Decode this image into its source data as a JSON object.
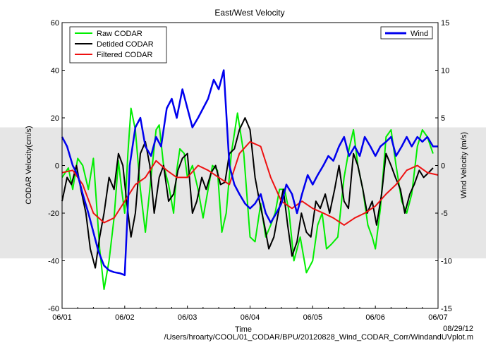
{
  "chart_data": {
    "type": "line",
    "title": "East/West Velocity",
    "xlabel": "Time",
    "ylabel_left": "CODAR Velocity(cm/s)",
    "ylabel_right": "Wind Velocity (m/s)",
    "ylim_left": [
      -60,
      60
    ],
    "ylim_right": [
      -15,
      15
    ],
    "left_ticks": [
      "-60",
      "-40",
      "-20",
      "0",
      "20",
      "40",
      "60"
    ],
    "right_ticks": [
      "-15",
      "-10",
      "-5",
      "0",
      "5",
      "10",
      "15"
    ],
    "x_ticks": [
      "06/01",
      "06/02",
      "06/03",
      "06/04",
      "06/05",
      "06/06",
      "06/07"
    ],
    "x_range": [
      0,
      6
    ],
    "shaded_band": [
      -39,
      16
    ],
    "date_label": "08/29/12",
    "file_path": "/Users/hroarty/COOL/01_CODAR/BPU/20120828_Wind_CODAR_Corr/WindandUVplot.m",
    "legend_left": [
      "Raw CODAR",
      "Detided CODAR",
      "Filtered CODAR"
    ],
    "legend_right": [
      "Wind"
    ],
    "colors": {
      "raw": "#00ee00",
      "detided": "#000000",
      "filtered": "#ee1111",
      "wind": "#0000ee",
      "band": "#e6e6e6"
    },
    "series": [
      {
        "name": "Raw CODAR",
        "axis": "left",
        "x": [
          0.0,
          0.1,
          0.17,
          0.25,
          0.33,
          0.42,
          0.5,
          0.6,
          0.67,
          0.75,
          0.83,
          0.9,
          0.95,
          1.0,
          1.05,
          1.1,
          1.17,
          1.25,
          1.33,
          1.42,
          1.5,
          1.55,
          1.62,
          1.7,
          1.78,
          1.83,
          1.88,
          1.95,
          2.0,
          2.08,
          2.17,
          2.25,
          2.33,
          2.4,
          2.48,
          2.55,
          2.62,
          2.7,
          2.8,
          2.9,
          3.0,
          3.08,
          3.17,
          3.25,
          3.33,
          3.4,
          3.47,
          3.55,
          3.62,
          3.7,
          3.8,
          3.9,
          4.0,
          4.08,
          4.15,
          4.22,
          4.3,
          4.4,
          4.5,
          4.58,
          4.65,
          4.72,
          4.8,
          4.88,
          4.95,
          5.0,
          5.08,
          5.17,
          5.25,
          5.33,
          5.42,
          5.5,
          5.58,
          5.67,
          5.75,
          5.83,
          5.92
        ],
        "y": [
          -5,
          -1,
          -10,
          3,
          0,
          -10,
          3,
          -35,
          -52,
          -40,
          -22,
          2,
          -10,
          -20,
          5,
          24,
          15,
          -10,
          -28,
          -5,
          15,
          17,
          0,
          -8,
          -20,
          -2,
          7,
          5,
          -5,
          0,
          -10,
          -22,
          -10,
          0,
          -2,
          -28,
          -20,
          5,
          22,
          5,
          -30,
          -32,
          -16,
          -30,
          -25,
          -20,
          -10,
          -10,
          -19,
          -40,
          -30,
          -45,
          -40,
          -25,
          -20,
          -35,
          -33,
          -30,
          -5,
          7,
          15,
          0,
          -10,
          -25,
          -30,
          -35,
          -18,
          12,
          15,
          0,
          -15,
          -20,
          -12,
          8,
          15,
          12,
          5
        ]
      },
      {
        "name": "Detided CODAR",
        "axis": "left",
        "x": [
          0.0,
          0.08,
          0.15,
          0.23,
          0.3,
          0.38,
          0.45,
          0.53,
          0.6,
          0.67,
          0.75,
          0.83,
          0.9,
          0.97,
          1.03,
          1.1,
          1.17,
          1.25,
          1.33,
          1.4,
          1.47,
          1.55,
          1.62,
          1.7,
          1.78,
          1.85,
          1.92,
          2.0,
          2.08,
          2.15,
          2.23,
          2.3,
          2.38,
          2.45,
          2.53,
          2.6,
          2.67,
          2.75,
          2.83,
          2.92,
          3.0,
          3.08,
          3.15,
          3.23,
          3.3,
          3.38,
          3.45,
          3.53,
          3.6,
          3.67,
          3.75,
          3.82,
          3.9,
          3.97,
          4.05,
          4.12,
          4.2,
          4.27,
          4.35,
          4.42,
          4.5,
          4.57,
          4.65,
          4.72,
          4.8,
          4.87,
          4.95,
          5.02,
          5.1,
          5.17,
          5.25,
          5.32,
          5.4,
          5.47,
          5.55,
          5.62,
          5.7,
          5.77,
          5.85,
          5.92
        ],
        "y": [
          -15,
          -5,
          -8,
          0,
          -10,
          -20,
          -35,
          -43,
          -30,
          -20,
          -5,
          -10,
          5,
          0,
          -15,
          -30,
          -20,
          5,
          10,
          0,
          -20,
          -5,
          0,
          -15,
          -12,
          -2,
          3,
          5,
          -20,
          -15,
          -5,
          -10,
          -3,
          0,
          -8,
          -7,
          5,
          7,
          15,
          20,
          15,
          -5,
          -15,
          -25,
          -35,
          -30,
          -20,
          -10,
          -25,
          -38,
          -32,
          -20,
          -28,
          -30,
          -15,
          -18,
          -12,
          -20,
          -10,
          0,
          -15,
          -18,
          5,
          0,
          -10,
          -20,
          -15,
          -25,
          -12,
          5,
          0,
          -5,
          -10,
          -20,
          -12,
          -8,
          -2,
          -5,
          -3,
          -1
        ]
      },
      {
        "name": "Filtered CODAR",
        "axis": "left",
        "x": [
          0.0,
          0.17,
          0.33,
          0.5,
          0.67,
          0.83,
          1.0,
          1.17,
          1.33,
          1.5,
          1.67,
          1.83,
          2.0,
          2.17,
          2.33,
          2.5,
          2.67,
          2.83,
          3.0,
          3.17,
          3.33,
          3.5,
          3.67,
          3.83,
          4.0,
          4.17,
          4.33,
          4.5,
          4.67,
          4.83,
          5.0,
          5.17,
          5.33,
          5.5,
          5.67,
          5.83,
          6.0
        ],
        "y": [
          -3,
          -2,
          -8,
          -20,
          -24,
          -22,
          -15,
          -8,
          -5,
          2,
          -2,
          -5,
          -5,
          0,
          -2,
          -5,
          -8,
          5,
          10,
          8,
          -5,
          -15,
          -18,
          -15,
          -18,
          -20,
          -22,
          -25,
          -22,
          -20,
          -17,
          -12,
          -8,
          -2,
          0,
          -3,
          -4
        ]
      },
      {
        "name": "Wind",
        "axis": "right",
        "x": [
          0.0,
          0.08,
          0.17,
          0.25,
          0.33,
          0.42,
          0.5,
          0.58,
          0.67,
          0.75,
          0.83,
          0.92,
          1.0,
          1.08,
          1.17,
          1.25,
          1.33,
          1.42,
          1.5,
          1.58,
          1.67,
          1.75,
          1.83,
          1.92,
          2.0,
          2.08,
          2.17,
          2.25,
          2.33,
          2.42,
          2.5,
          2.58,
          2.67,
          2.75,
          2.83,
          2.92,
          3.0,
          3.08,
          3.17,
          3.25,
          3.33,
          3.42,
          3.5,
          3.58,
          3.67,
          3.75,
          3.83,
          3.92,
          4.0,
          4.08,
          4.17,
          4.25,
          4.33,
          4.42,
          4.5,
          4.58,
          4.67,
          4.75,
          4.83,
          4.92,
          5.0,
          5.08,
          5.17,
          5.25,
          5.33,
          5.42,
          5.5,
          5.58,
          5.67,
          5.75,
          5.83,
          5.92,
          6.0
        ],
        "y": [
          3,
          2,
          0,
          -1,
          -3,
          -5,
          -7,
          -9,
          -10.5,
          -11,
          -11.2,
          -11.3,
          -11.5,
          0,
          4,
          5,
          2,
          1,
          3,
          2,
          6,
          7,
          5,
          8,
          6,
          4,
          5,
          6,
          7,
          9,
          8,
          10,
          0,
          -2,
          -3,
          -4,
          -4.5,
          -4,
          -3,
          -5,
          -6,
          -5,
          -4,
          -2,
          -3,
          -5,
          -3,
          -1,
          -2,
          -1,
          0,
          1,
          0.5,
          2,
          3,
          1,
          2,
          1,
          3,
          2,
          1,
          2,
          2.5,
          3,
          1,
          2,
          3,
          2,
          3,
          2.5,
          3,
          2,
          2
        ]
      }
    ]
  }
}
